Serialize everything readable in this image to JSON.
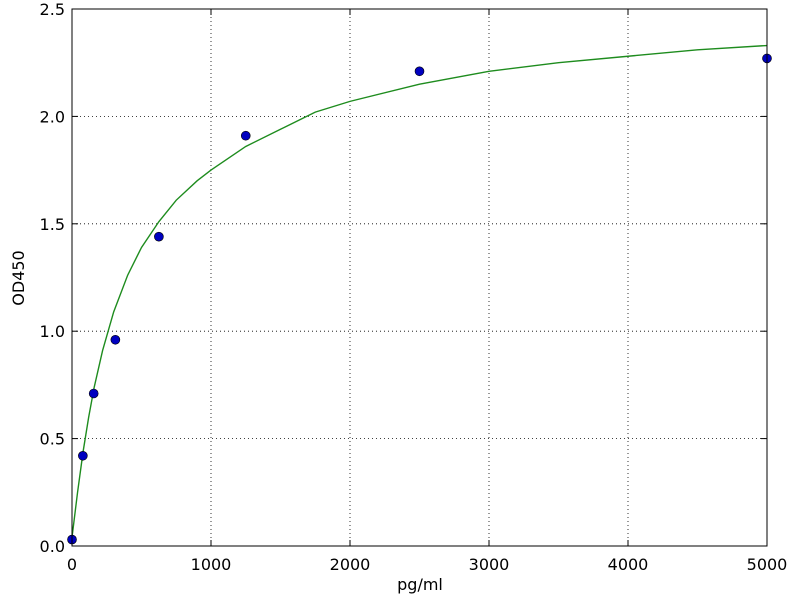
{
  "chart_data": {
    "type": "scatter",
    "xlabel": "pg/ml",
    "ylabel": "OD450",
    "xlim": [
      0,
      5000
    ],
    "ylim": [
      0,
      2.5
    ],
    "xticks": [
      0,
      1000,
      2000,
      3000,
      4000,
      5000
    ],
    "yticks": [
      {
        "value": 0,
        "label": "0.0"
      },
      0.5,
      {
        "value": 1,
        "label": "1.0"
      },
      1.5,
      {
        "value": 2,
        "label": "2.0"
      },
      2.5
    ],
    "grid": true,
    "series": [
      {
        "type": "line",
        "color": "#1e8c1e",
        "x": [
          0,
          40,
          80,
          120,
          160,
          220,
          300,
          400,
          500,
          625,
          750,
          900,
          1000,
          1250,
          1500,
          1750,
          2000,
          2500,
          3000,
          3500,
          4000,
          4500,
          5000
        ],
        "values": [
          0.04,
          0.25,
          0.44,
          0.6,
          0.74,
          0.91,
          1.09,
          1.26,
          1.39,
          1.51,
          1.61,
          1.7,
          1.75,
          1.86,
          1.94,
          2.02,
          2.07,
          2.15,
          2.21,
          2.25,
          2.28,
          2.31,
          2.33
        ]
      },
      {
        "type": "scatter",
        "color": "#0000c0",
        "x": [
          0,
          78,
          156,
          312,
          625,
          1250,
          2500,
          5000
        ],
        "values": [
          0.03,
          0.42,
          0.71,
          0.96,
          1.44,
          1.91,
          2.21,
          2.27
        ]
      }
    ]
  }
}
